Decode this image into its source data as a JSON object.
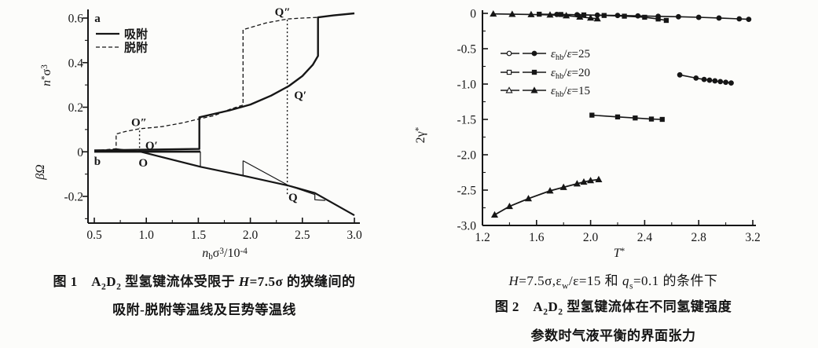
{
  "figures": [
    {
      "id": "figure-1",
      "caption_rich": [
        {
          "t": "图 1　A"
        },
        {
          "t": "2",
          "sub": 1
        },
        {
          "t": "D"
        },
        {
          "t": "2",
          "sub": 1
        },
        {
          "t": " 型氢键流体受限于 "
        },
        {
          "t": "H",
          "i": 1
        },
        {
          "t": "=7.5σ 的狭缝间的"
        }
      ],
      "caption_line2": "吸附-脱附等温线及巨势等温线"
    },
    {
      "id": "figure-2",
      "condition_rich": [
        {
          "t": "H",
          "i": 1
        },
        {
          "t": "=7.5σ,ε"
        },
        {
          "t": "w",
          "sub": 1
        },
        {
          "t": "/ε=15 和 "
        },
        {
          "t": "q",
          "i": 1
        },
        {
          "t": "s",
          "sub": 1
        },
        {
          "t": "=0.1 的条件下"
        }
      ],
      "caption_rich": [
        {
          "t": "图 2　A"
        },
        {
          "t": "2",
          "sub": 1
        },
        {
          "t": "D"
        },
        {
          "t": "2",
          "sub": 1
        },
        {
          "t": " 型氢键流体在不同氢键强度"
        }
      ],
      "caption_line2": "参数时气液平衡的界面张力"
    }
  ],
  "chart_data": [
    {
      "type": "line",
      "title": "吸附-脱附等温线及巨势等温线 (H=7.5σ)",
      "xlabel": "n_b σ^3 / 10^-4",
      "ylabel_upper": "n*σ^3",
      "ylabel_lower": "βΩ",
      "x_axis": {
        "range": [
          0.5,
          3.0
        ],
        "ticks": [
          0.5,
          1.0,
          1.5,
          2.0,
          2.5,
          3.0
        ],
        "minor_step": 0.25,
        "label_parts": [
          {
            "t": "n",
            "i": 1
          },
          {
            "t": "b",
            "sub": 1
          },
          {
            "t": "σ"
          },
          {
            "t": "3",
            "sup": 1
          },
          {
            "t": "/10"
          },
          {
            "t": "-4",
            "sup": 1
          }
        ]
      },
      "y_axis": {
        "range": [
          -0.31,
          0.64
        ],
        "ticks": [
          {
            "v": 0.6,
            "l": "0.6"
          },
          {
            "v": 0.4,
            "l": "0.4"
          },
          {
            "v": 0.2,
            "l": "0.2"
          },
          {
            "v": 0,
            "l": "0"
          },
          {
            "v": -0.2,
            "l": "-0.2"
          }
        ],
        "minor_step": 0.1,
        "minor_range": [
          -0.3,
          0.6
        ],
        "label_upper_parts": [
          {
            "t": "n",
            "i": 1
          },
          {
            "t": "*",
            "sup": 1
          },
          {
            "t": "σ"
          },
          {
            "t": "3",
            "sup": 1
          }
        ],
        "label_lower_parts": [
          {
            "t": "βΩ",
            "i": 1
          }
        ]
      },
      "legend": {
        "entries": [
          {
            "label": "吸附",
            "dash": false
          },
          {
            "label": "脱附",
            "dash": true
          }
        ]
      },
      "series": [
        {
          "name": "adsorption-isotherm",
          "dash": false,
          "w": 2.4,
          "points": [
            [
              0.5,
              0.006
            ],
            [
              0.9,
              0.009
            ],
            [
              1.51,
              0.013
            ],
            [
              1.51,
              0.155
            ],
            [
              1.65,
              0.17
            ],
            [
              1.8,
              0.186
            ],
            [
              2.0,
              0.212
            ],
            [
              2.2,
              0.252
            ],
            [
              2.37,
              0.295
            ],
            [
              2.5,
              0.34
            ],
            [
              2.6,
              0.39
            ],
            [
              2.65,
              0.43
            ],
            [
              2.65,
              0.603
            ],
            [
              2.8,
              0.612
            ],
            [
              3.0,
              0.621
            ]
          ]
        },
        {
          "name": "desorption-isotherm",
          "dash": true,
          "w": 1.3,
          "points": [
            [
              3.0,
              0.621
            ],
            [
              2.8,
              0.612
            ],
            [
              2.65,
              0.603
            ],
            [
              2.5,
              0.6
            ],
            [
              2.36,
              0.596
            ],
            [
              2.15,
              0.578
            ],
            [
              1.93,
              0.548
            ],
            [
              1.93,
              0.21
            ],
            [
              1.8,
              0.19
            ],
            [
              1.65,
              0.162
            ],
            [
              1.51,
              0.148
            ],
            [
              1.35,
              0.13
            ],
            [
              1.15,
              0.113
            ],
            [
              0.93,
              0.103
            ],
            [
              0.8,
              0.091
            ],
            [
              0.71,
              0.08
            ],
            [
              0.71,
              0.014
            ],
            [
              0.6,
              0.009
            ],
            [
              0.5,
              0.006
            ]
          ]
        },
        {
          "name": "grand-potential-zero-branch",
          "dash": false,
          "w": 2.8,
          "points": [
            [
              0.5,
              0.001
            ],
            [
              1.52,
              0.001
            ]
          ]
        },
        {
          "name": "grand-potential-main",
          "dash": false,
          "w": 2.2,
          "points": [
            [
              0.95,
              0.0
            ],
            [
              1.52,
              -0.067
            ],
            [
              1.93,
              -0.107
            ],
            [
              2.37,
              -0.152
            ],
            [
              2.62,
              -0.185
            ],
            [
              3.0,
              -0.285
            ]
          ]
        },
        {
          "name": "grand-potential-jump",
          "dash": false,
          "w": 1.2,
          "points": [
            [
              1.52,
              0.001
            ],
            [
              1.52,
              -0.067
            ]
          ]
        },
        {
          "name": "grand-potential-left-wedge",
          "dash": false,
          "w": 1.1,
          "points": [
            [
              0.71,
              0.0
            ],
            [
              0.71,
              0.014
            ],
            [
              0.95,
              0.0
            ]
          ]
        },
        {
          "name": "grand-potential-desorption",
          "dash": false,
          "w": 1.2,
          "points": [
            [
              1.93,
              -0.04
            ],
            [
              2.37,
              -0.152
            ],
            [
              2.62,
              -0.192
            ],
            [
              2.62,
              -0.215
            ],
            [
              2.72,
              -0.218
            ]
          ]
        },
        {
          "name": "grand-potential-desorption-jump",
          "dash": false,
          "w": 1.2,
          "points": [
            [
              1.93,
              -0.04
            ],
            [
              1.93,
              -0.107
            ]
          ]
        }
      ],
      "vlines": [
        {
          "x": 0.935,
          "y1": 0.0,
          "y2": 0.108
        },
        {
          "x": 2.355,
          "y1": -0.19,
          "y2": 0.6
        }
      ],
      "point_labels": [
        {
          "x": 0.53,
          "y": 0.582,
          "t": "a"
        },
        {
          "x": 0.53,
          "y": -0.059,
          "t": "b"
        },
        {
          "x": 0.93,
          "y": 0.115,
          "t": "O″"
        },
        {
          "x": 1.05,
          "y": 0.012,
          "t": "O′"
        },
        {
          "x": 0.97,
          "y": -0.066,
          "t": "O"
        },
        {
          "x": 2.31,
          "y": 0.611,
          "t": "Q″"
        },
        {
          "x": 2.48,
          "y": 0.237,
          "t": "Q′"
        },
        {
          "x": 2.41,
          "y": -0.221,
          "t": "Q"
        }
      ]
    },
    {
      "type": "line",
      "title": "不同氢键强度参数时气液平衡的界面张力",
      "xlabel": "T*",
      "ylabel": "2γ*",
      "x_axis": {
        "range": [
          1.2,
          3.2
        ],
        "ticks": [
          1.2,
          1.6,
          2.0,
          2.4,
          2.8,
          3.2
        ],
        "minor_step": 0.2,
        "label_parts": [
          {
            "t": "T",
            "i": 1
          },
          {
            "t": "*",
            "sup": 1
          }
        ]
      },
      "y_axis": {
        "range": [
          -3.0,
          0.05
        ],
        "ticks": [
          {
            "v": 0,
            "l": "0"
          },
          {
            "v": -0.5,
            "l": "-0.5"
          },
          {
            "v": -1.0,
            "l": "-1.0"
          },
          {
            "v": -1.5,
            "l": "-1.5"
          },
          {
            "v": -2.0,
            "l": "-2.0"
          },
          {
            "v": -2.5,
            "l": "-2.5"
          },
          {
            "v": -3.0,
            "l": "-3.0"
          }
        ],
        "minor_step": 0.25,
        "minor_range": [
          -3.0,
          0
        ],
        "label_parts": [
          {
            "t": "2γ"
          },
          {
            "t": "*",
            "sup": 1
          }
        ]
      },
      "legend": {
        "entries": [
          {
            "marker": "circle",
            "label_parts": [
              {
                "t": "ε",
                "i": 1
              },
              {
                "t": "hb",
                "sub": 1
              },
              {
                "t": "/"
              },
              {
                "t": "ε",
                "i": 1
              },
              {
                "t": "=25"
              }
            ]
          },
          {
            "marker": "square",
            "label_parts": [
              {
                "t": "ε",
                "i": 1
              },
              {
                "t": "hb",
                "sub": 1
              },
              {
                "t": "/"
              },
              {
                "t": "ε",
                "i": 1
              },
              {
                "t": "=20"
              }
            ]
          },
          {
            "marker": "triangle",
            "label_parts": [
              {
                "t": "ε",
                "i": 1
              },
              {
                "t": "hb",
                "sub": 1
              },
              {
                "t": "/"
              },
              {
                "t": "ε",
                "i": 1
              },
              {
                "t": "=15"
              }
            ]
          }
        ]
      },
      "series": [
        {
          "name": "eps25-vapor",
          "marker": "circle",
          "w": 1.6,
          "points": [
            [
              1.75,
              -0.015
            ],
            [
              1.9,
              -0.02
            ],
            [
              2.05,
              -0.025
            ],
            [
              2.2,
              -0.03
            ],
            [
              2.35,
              -0.036
            ],
            [
              2.5,
              -0.042
            ],
            [
              2.65,
              -0.048
            ],
            [
              2.8,
              -0.056
            ],
            [
              2.95,
              -0.066
            ],
            [
              3.1,
              -0.078
            ],
            [
              3.17,
              -0.085
            ]
          ]
        },
        {
          "name": "eps25-liquid",
          "marker": "circle",
          "w": 1.6,
          "points": [
            [
              2.66,
              -0.87
            ],
            [
              2.78,
              -0.915
            ],
            [
              2.84,
              -0.935
            ],
            [
              2.88,
              -0.945
            ],
            [
              2.92,
              -0.955
            ],
            [
              2.96,
              -0.965
            ],
            [
              3.0,
              -0.975
            ],
            [
              3.04,
              -0.985
            ]
          ]
        },
        {
          "name": "eps20-vapor",
          "marker": "square",
          "w": 1.6,
          "points": [
            [
              1.62,
              -0.012
            ],
            [
              1.78,
              -0.016
            ],
            [
              1.95,
              -0.022
            ],
            [
              2.1,
              -0.03
            ],
            [
              2.25,
              -0.04
            ],
            [
              2.4,
              -0.055
            ],
            [
              2.5,
              -0.08
            ],
            [
              2.56,
              -0.1
            ]
          ]
        },
        {
          "name": "eps20-liquid",
          "marker": "square",
          "w": 1.6,
          "points": [
            [
              2.01,
              -1.44
            ],
            [
              2.2,
              -1.465
            ],
            [
              2.33,
              -1.48
            ],
            [
              2.45,
              -1.495
            ],
            [
              2.53,
              -1.5
            ]
          ]
        },
        {
          "name": "eps15-vapor",
          "marker": "triangle",
          "w": 1.6,
          "points": [
            [
              1.28,
              -0.008
            ],
            [
              1.42,
              -0.012
            ],
            [
              1.56,
              -0.016
            ],
            [
              1.7,
              -0.022
            ],
            [
              1.82,
              -0.032
            ],
            [
              1.92,
              -0.05
            ],
            [
              2.0,
              -0.065
            ],
            [
              2.05,
              -0.075
            ]
          ]
        },
        {
          "name": "eps15-liquid",
          "marker": "triangle",
          "w": 1.8,
          "points": [
            [
              1.29,
              -2.85
            ],
            [
              1.4,
              -2.73
            ],
            [
              1.54,
              -2.62
            ],
            [
              1.7,
              -2.51
            ],
            [
              1.8,
              -2.46
            ],
            [
              1.9,
              -2.41
            ],
            [
              1.95,
              -2.385
            ],
            [
              2.0,
              -2.365
            ],
            [
              2.06,
              -2.35
            ]
          ]
        }
      ]
    }
  ]
}
